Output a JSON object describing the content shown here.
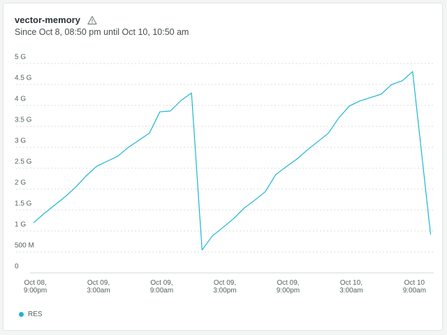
{
  "header": {
    "title": "vector-memory",
    "subtitle": "Since Oct 8, 08:50 pm until Oct 10, 10:50 am",
    "warning_icon": "warning-triangle-icon"
  },
  "colors": {
    "series": "#1cb5d1",
    "grid": "#d9dcdc",
    "axis_text": "#555f61",
    "axis_line": "#d3d6d6"
  },
  "chart_data": {
    "type": "line",
    "x_range": [
      "Oct 8, 8:50 pm",
      "Oct 10, 10:50 am"
    ],
    "ylim": [
      0,
      5000
    ],
    "y_unit": "MB",
    "yticks": [
      {
        "value": 0,
        "label": "0"
      },
      {
        "value": 500,
        "label": "500 M"
      },
      {
        "value": 1000,
        "label": "1 G"
      },
      {
        "value": 1500,
        "label": "1.5 G"
      },
      {
        "value": 2000,
        "label": "2 G"
      },
      {
        "value": 2500,
        "label": "2.5 G"
      },
      {
        "value": 3000,
        "label": "3 G"
      },
      {
        "value": 3500,
        "label": "3.5 G"
      },
      {
        "value": 4000,
        "label": "4 G"
      },
      {
        "value": 4500,
        "label": "4.5 G"
      },
      {
        "value": 5000,
        "label": "5 G"
      }
    ],
    "xticks": [
      {
        "hour": 0.17,
        "line1": "Oct 08,",
        "line2": "9:00pm"
      },
      {
        "hour": 6.17,
        "line1": "Oct 09,",
        "line2": "3:00am"
      },
      {
        "hour": 12.17,
        "line1": "Oct 09,",
        "line2": "9:00am"
      },
      {
        "hour": 18.17,
        "line1": "Oct 09,",
        "line2": "3:00pm"
      },
      {
        "hour": 24.17,
        "line1": "Oct 09,",
        "line2": "9:00pm"
      },
      {
        "hour": 30.17,
        "line1": "Oct 10,",
        "line2": "3:00am"
      },
      {
        "hour": 36.17,
        "line1": "Oct 10",
        "line2": "9:00am"
      }
    ],
    "x_hours_span": 38,
    "grid": true,
    "legend": "bottom-left",
    "series": [
      {
        "name": "RES",
        "points": [
          [
            0,
            1030
          ],
          [
            1,
            1250
          ],
          [
            2,
            1450
          ],
          [
            3,
            1650
          ],
          [
            4,
            1880
          ],
          [
            5,
            2150
          ],
          [
            6,
            2380
          ],
          [
            7,
            2500
          ],
          [
            8,
            2620
          ],
          [
            9,
            2830
          ],
          [
            10,
            3000
          ],
          [
            11,
            3170
          ],
          [
            12,
            3680
          ],
          [
            13,
            3700
          ],
          [
            14,
            3950
          ],
          [
            15,
            4130
          ],
          [
            16,
            380
          ],
          [
            17,
            720
          ],
          [
            18,
            920
          ],
          [
            19,
            1130
          ],
          [
            20,
            1380
          ],
          [
            21,
            1570
          ],
          [
            22,
            1770
          ],
          [
            23,
            2180
          ],
          [
            24,
            2370
          ],
          [
            25,
            2550
          ],
          [
            26,
            2770
          ],
          [
            27,
            2970
          ],
          [
            28,
            3170
          ],
          [
            29,
            3540
          ],
          [
            30,
            3820
          ],
          [
            31,
            3940
          ],
          [
            32,
            4020
          ],
          [
            33,
            4100
          ],
          [
            34,
            4330
          ],
          [
            35,
            4420
          ],
          [
            36,
            4640
          ],
          [
            37.7,
            750
          ]
        ]
      }
    ]
  }
}
